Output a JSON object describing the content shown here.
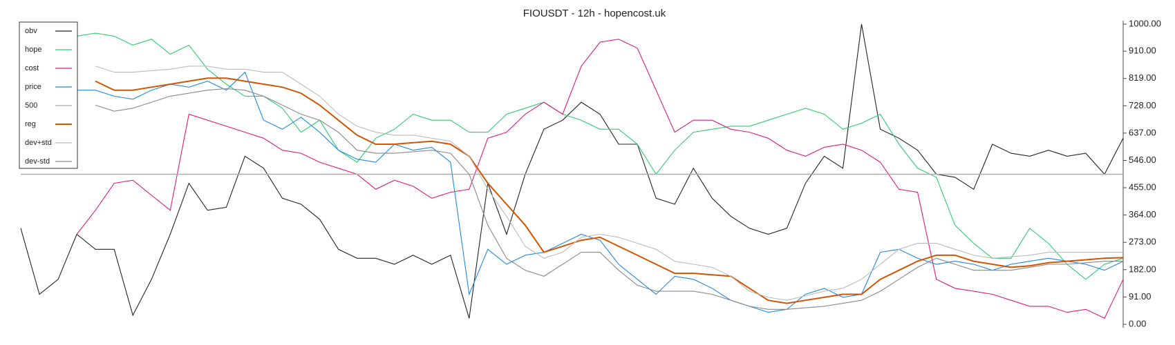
{
  "chart_data": {
    "type": "line",
    "title": "FIOUSDT - 12h - hopencost.uk",
    "ylim": [
      0,
      1000
    ],
    "yticks": [
      {
        "value": 0,
        "label": "0.00"
      },
      {
        "value": 91,
        "label": "91.00"
      },
      {
        "value": 182,
        "label": "182.00"
      },
      {
        "value": 273,
        "label": "273.00"
      },
      {
        "value": 364,
        "label": "364.00"
      },
      {
        "value": 455,
        "label": "455.00"
      },
      {
        "value": 546,
        "label": "546.00"
      },
      {
        "value": 637,
        "label": "637.00"
      },
      {
        "value": 728,
        "label": "728.00"
      },
      {
        "value": 819,
        "label": "819.00"
      },
      {
        "value": 910,
        "label": "910.00"
      },
      {
        "value": 1000,
        "label": "1000.00"
      }
    ],
    "legend": "upper left",
    "series": [
      {
        "name": "obv",
        "color": "#222222",
        "values": [
          320,
          100,
          150,
          300,
          250,
          250,
          30,
          150,
          300,
          470,
          380,
          390,
          560,
          520,
          420,
          400,
          350,
          250,
          220,
          220,
          200,
          230,
          200,
          230,
          20,
          470,
          300,
          500,
          650,
          680,
          740,
          700,
          600,
          600,
          420,
          400,
          520,
          420,
          360,
          320,
          300,
          320,
          470,
          560,
          520,
          1000,
          650,
          620,
          580,
          500,
          490,
          450,
          600,
          570,
          560,
          580,
          560,
          570,
          500,
          620
        ]
      },
      {
        "name": "hope",
        "color": "#2ecc71",
        "values": [
          null,
          null,
          null,
          960,
          970,
          960,
          930,
          950,
          900,
          930,
          850,
          800,
          760,
          760,
          720,
          640,
          680,
          580,
          540,
          620,
          650,
          700,
          680,
          680,
          640,
          640,
          700,
          720,
          740,
          700,
          680,
          650,
          650,
          600,
          500,
          580,
          640,
          650,
          660,
          660,
          680,
          700,
          720,
          700,
          650,
          670,
          700,
          600,
          520,
          490,
          330,
          270,
          220,
          220,
          320,
          270,
          200,
          150,
          200,
          220
        ]
      },
      {
        "name": "cost",
        "color": "#e0197a",
        "values": [
          null,
          null,
          null,
          300,
          380,
          470,
          480,
          430,
          380,
          700,
          680,
          660,
          640,
          620,
          580,
          570,
          540,
          520,
          500,
          450,
          480,
          460,
          420,
          440,
          450,
          620,
          640,
          700,
          740,
          700,
          860,
          940,
          950,
          920,
          780,
          640,
          680,
          680,
          650,
          640,
          620,
          580,
          560,
          590,
          600,
          580,
          540,
          450,
          440,
          150,
          120,
          110,
          100,
          80,
          60,
          60,
          40,
          50,
          20,
          150
        ]
      },
      {
        "name": "price",
        "color": "#1e88e5",
        "values": [
          null,
          null,
          null,
          780,
          780,
          760,
          750,
          780,
          800,
          790,
          810,
          780,
          840,
          680,
          650,
          690,
          640,
          580,
          550,
          540,
          600,
          580,
          590,
          540,
          100,
          250,
          200,
          230,
          240,
          270,
          300,
          280,
          200,
          150,
          100,
          160,
          150,
          120,
          80,
          60,
          40,
          50,
          100,
          120,
          90,
          100,
          240,
          250,
          220,
          200,
          210,
          200,
          180,
          200,
          210,
          220,
          210,
          200,
          180,
          210
        ]
      },
      {
        "name": "500",
        "color": "#aaaaaa",
        "style": "hline",
        "values": [
          500
        ]
      },
      {
        "name": "reg",
        "color": "#d35400",
        "width": 2,
        "values": [
          null,
          null,
          null,
          null,
          810,
          780,
          780,
          790,
          800,
          810,
          820,
          820,
          810,
          800,
          790,
          770,
          730,
          680,
          630,
          600,
          600,
          605,
          610,
          600,
          560,
          470,
          400,
          330,
          240,
          260,
          280,
          290,
          260,
          230,
          200,
          170,
          170,
          165,
          160,
          120,
          80,
          70,
          80,
          90,
          100,
          100,
          150,
          180,
          210,
          230,
          230,
          210,
          200,
          190,
          195,
          205,
          210,
          215,
          220,
          222
        ]
      },
      {
        "name": "dev+std",
        "color": "#bbbbbb",
        "values": [
          null,
          null,
          null,
          null,
          860,
          840,
          840,
          845,
          850,
          860,
          860,
          850,
          850,
          840,
          840,
          800,
          760,
          700,
          660,
          640,
          630,
          630,
          620,
          610,
          560,
          450,
          360,
          260,
          220,
          240,
          290,
          300,
          290,
          270,
          250,
          210,
          200,
          190,
          160,
          110,
          90,
          80,
          95,
          110,
          120,
          150,
          200,
          250,
          270,
          270,
          250,
          230,
          220,
          225,
          230,
          240,
          240,
          240,
          240,
          240
        ]
      },
      {
        "name": "dev-std",
        "color": "#888888",
        "values": [
          null,
          null,
          null,
          null,
          730,
          710,
          720,
          740,
          760,
          770,
          780,
          785,
          780,
          760,
          730,
          700,
          680,
          640,
          580,
          570,
          570,
          575,
          580,
          570,
          500,
          330,
          220,
          180,
          160,
          200,
          240,
          240,
          180,
          130,
          110,
          110,
          110,
          100,
          80,
          60,
          50,
          50,
          55,
          60,
          70,
          80,
          110,
          150,
          190,
          220,
          200,
          180,
          180,
          180,
          190,
          200,
          200,
          205,
          210,
          210
        ]
      }
    ]
  }
}
